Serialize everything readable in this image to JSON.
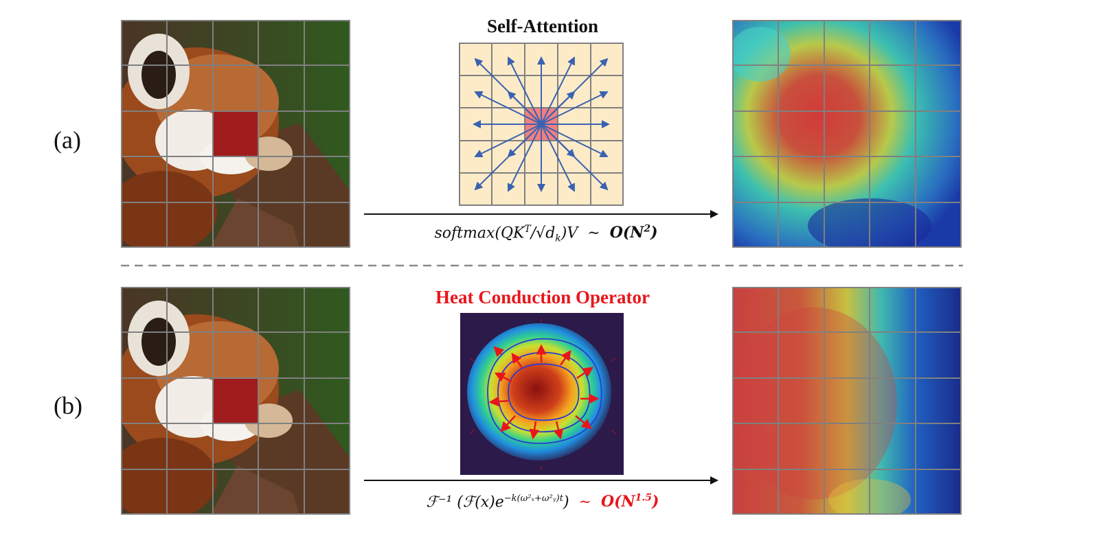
{
  "rows": [
    {
      "label": "(a)",
      "operator_title": "Self-Attention",
      "formula": {
        "main": "softmax(QK",
        "sup_T": "T",
        "after_sup": "/√d",
        "sub_k": "k",
        "tail": ")V",
        "tilde": "~",
        "complexity_O": "O(N",
        "complexity_exp": "2",
        "complexity_close": ")"
      }
    },
    {
      "label": "(b)",
      "operator_title": "Heat Conduction Operator",
      "formula": {
        "inv": "ℱ⁻¹",
        "body": "(ℱ(x)e",
        "exponent": "−k(ω²ₓ+ω²ᵧ)t",
        "close": ")",
        "tilde": "~",
        "complexity_O": "O(N",
        "complexity_exp": "1.5",
        "complexity_close": ")"
      }
    }
  ],
  "colors": {
    "grid_line": "#808080",
    "query_patch": "#a01c1c",
    "self_attention_bg": "#fdebc8",
    "self_attention_center": "#f08080",
    "arrow_blue": "#3a62b0",
    "heat_arrow_red": "#e8161b",
    "heat_bg": "#2b1a4a",
    "title_red": "#e8161b",
    "divider": "#8a8a8a"
  },
  "icons": {
    "input_image": "red-panda-photo",
    "attention_map": "attention-heatmap",
    "heat_map": "heat-conduction-heatmap"
  }
}
